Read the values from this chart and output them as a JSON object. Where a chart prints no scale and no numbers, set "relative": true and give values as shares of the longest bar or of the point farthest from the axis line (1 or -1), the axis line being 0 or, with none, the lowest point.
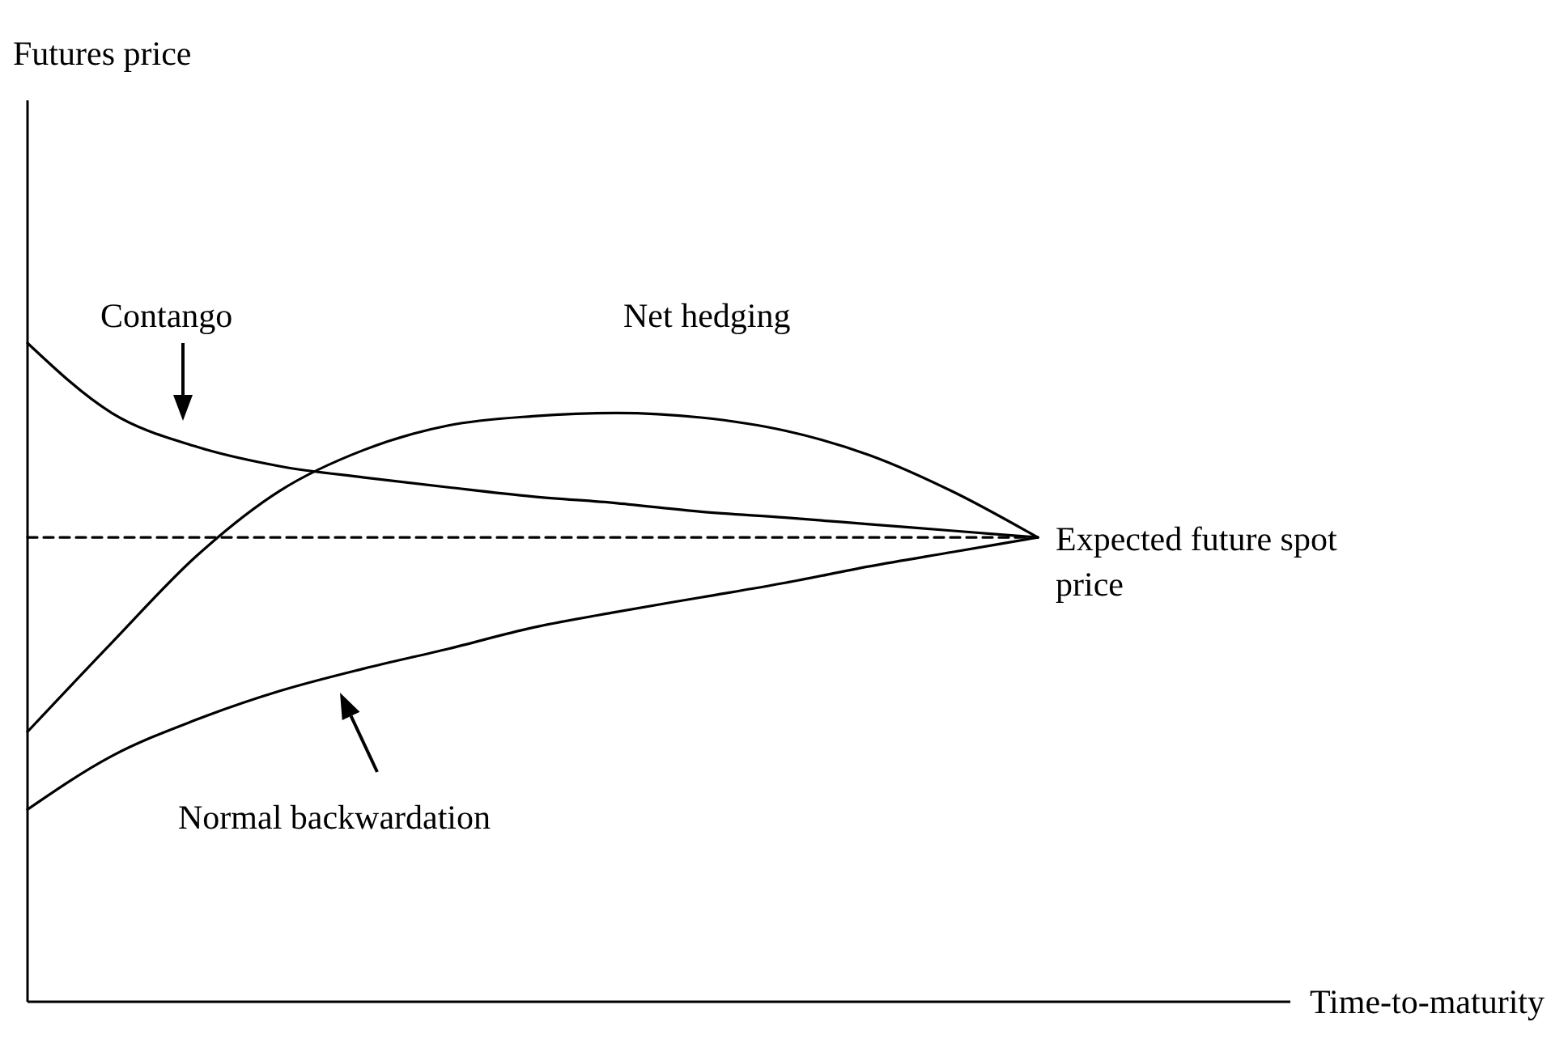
{
  "chart_data": {
    "type": "line",
    "relative": true,
    "xlabel": "Time-to-maturity",
    "annotations": [
      "Futures price"
    ],
    "categories": [
      null,
      null,
      null,
      null,
      null,
      null,
      null,
      null,
      null,
      null,
      null,
      null,
      null,
      null,
      null,
      null
    ],
    "series": [
      {
        "name": "Contango",
        "color": "#000000",
        "line_style": "solid",
        "values": [
          1.0,
          0.894,
          0.843,
          0.813,
          0.796,
          0.781,
          0.767,
          0.757,
          0.744,
          0.735,
          0.725,
          0.715,
          0.705,
          null,
          null,
          null
        ]
      },
      {
        "name": "Net hedging",
        "color": "#000000",
        "line_style": "solid",
        "values": [
          0.41,
          0.545,
          0.676,
          0.776,
          0.838,
          0.875,
          0.889,
          0.894,
          0.887,
          0.867,
          0.83,
          0.774,
          0.705,
          null,
          null,
          null
        ]
      },
      {
        "name": "Normal backwardation",
        "color": "#000000",
        "line_style": "solid",
        "values": [
          0.292,
          0.373,
          0.428,
          0.472,
          0.506,
          0.536,
          0.568,
          0.592,
          0.614,
          0.636,
          0.661,
          0.683,
          0.705,
          null,
          null,
          null
        ]
      },
      {
        "name": "Expected future spot price",
        "color": "#000000",
        "line_style": "dashed",
        "values": [
          0.705,
          0.705,
          0.705,
          0.705,
          0.705,
          0.705,
          0.705,
          0.705,
          0.705,
          0.705,
          0.705,
          0.705,
          0.705,
          null,
          null,
          null
        ]
      }
    ]
  }
}
